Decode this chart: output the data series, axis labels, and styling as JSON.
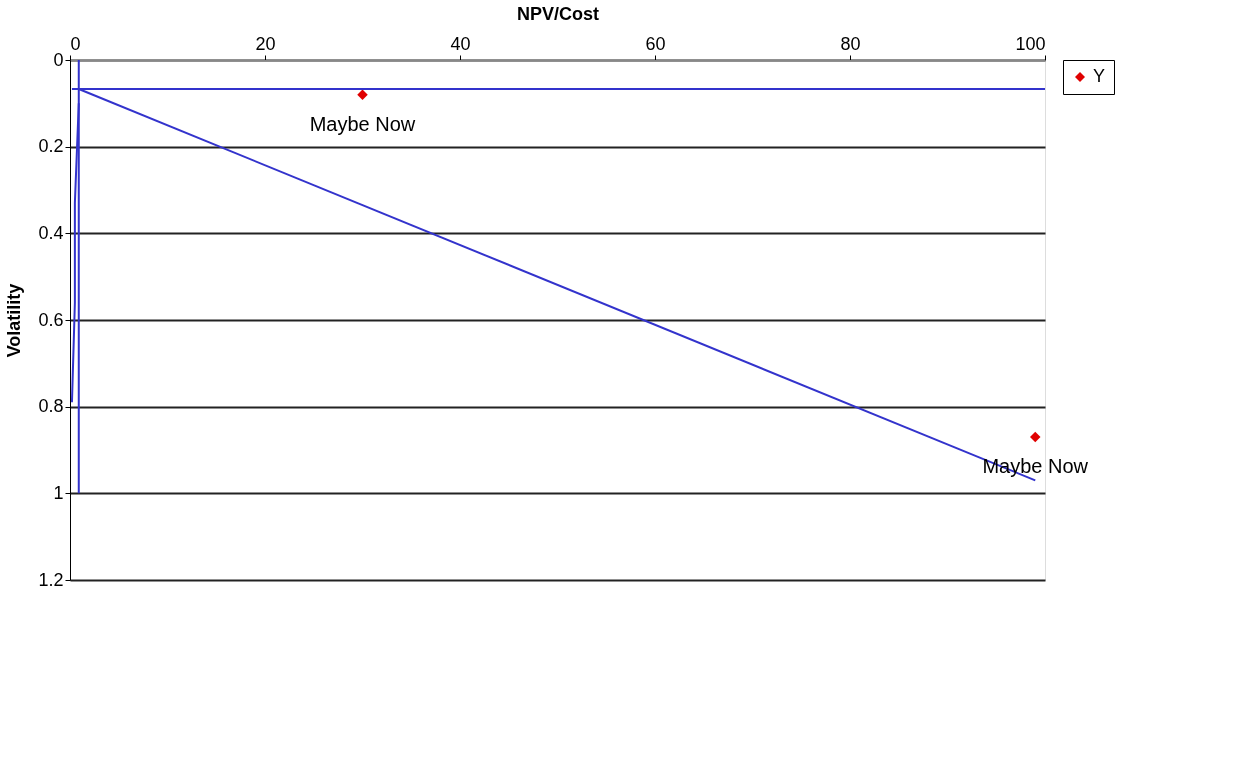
{
  "chart_data": {
    "type": "scatter",
    "xlabel": "NPV/Cost",
    "ylabel": "Volatility",
    "xlim": [
      0,
      100
    ],
    "xticks": [
      0,
      20,
      40,
      60,
      80,
      100
    ],
    "ylim": [
      1.2,
      0
    ],
    "yticks": [
      0,
      0.2,
      0.4,
      0.6,
      0.8,
      1,
      1.2
    ],
    "grid": "y",
    "legend": "right",
    "series": [
      {
        "name": "Y",
        "marker": "diamond",
        "color": "#e00000",
        "x": [
          30,
          99
        ],
        "values": [
          0.08,
          0.87
        ]
      },
      {
        "type": "line",
        "color": "#3333cc",
        "x": [
          0.2,
          100
        ],
        "values": [
          0.067,
          0.067
        ]
      },
      {
        "type": "line",
        "color": "#3333cc",
        "x": [
          0.9,
          99
        ],
        "values": [
          0.067,
          0.97
        ]
      },
      {
        "type": "line",
        "color": "#3333cc",
        "x": [
          0.9,
          0.9
        ],
        "values": [
          0,
          1
        ]
      },
      {
        "type": "line",
        "color": "#3333cc",
        "x": [
          0.2,
          0.5,
          0.5,
          0.9
        ],
        "values": [
          0.79,
          0.56,
          0.33,
          0.1
        ]
      }
    ],
    "annotations": [
      {
        "text": "Maybe Now",
        "x": 30,
        "y": 0.08
      },
      {
        "text": "Maybe Now",
        "x": 99,
        "y": 0.87
      }
    ]
  }
}
